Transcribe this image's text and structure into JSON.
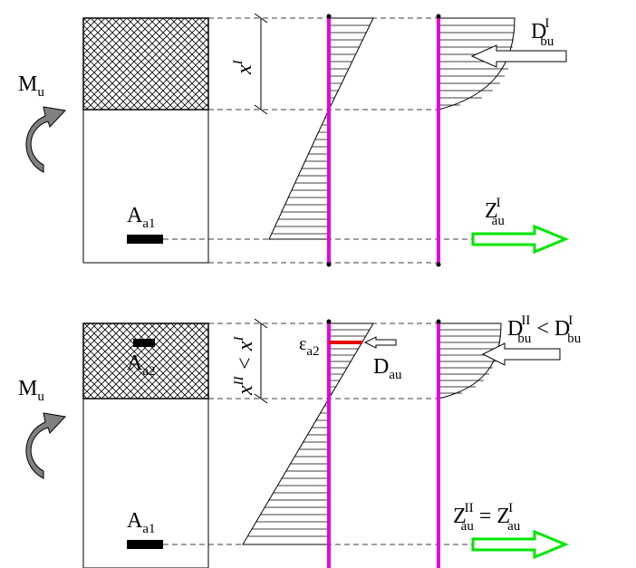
{
  "panels": [
    {
      "moment": {
        "main": "M",
        "sub": "u"
      },
      "rebar": {
        "main": "A",
        "sub": "a1"
      },
      "height_label": {
        "main": "x",
        "sup": "I"
      },
      "compression_force": {
        "main": "D",
        "sub": "bu",
        "sup": "I"
      },
      "tension_force": {
        "main": "Z",
        "sub": "au",
        "sup": "I"
      }
    },
    {
      "moment": {
        "main": "M",
        "sub": "u"
      },
      "rebar": {
        "main": "A",
        "sub": "a1"
      },
      "compression_rebar": {
        "main": "A",
        "sub": "a2"
      },
      "height_label": {
        "main": "x",
        "sup": "II",
        "op": " < ",
        "main2": "x",
        "sup2": "I"
      },
      "steel_strain": {
        "main": "ε",
        "sub": "a2"
      },
      "steel_force": {
        "main": "D",
        "sub": "au"
      },
      "compression_force": {
        "main": "D",
        "sub": "bu",
        "sup": "II",
        "op": " < ",
        "main2": "D",
        "sub2": "bu",
        "sup2": "I"
      },
      "tension_force": {
        "main": "Z",
        "sub": "au",
        "sup": "II",
        "op": " = ",
        "main2": "Z",
        "sub2": "au",
        "sup2": "I"
      }
    }
  ],
  "colors": {
    "axis": "#e600e6",
    "tension_arrow": "#00e600",
    "steel_strain": "#e60000",
    "moment_arrow": "#808080"
  }
}
